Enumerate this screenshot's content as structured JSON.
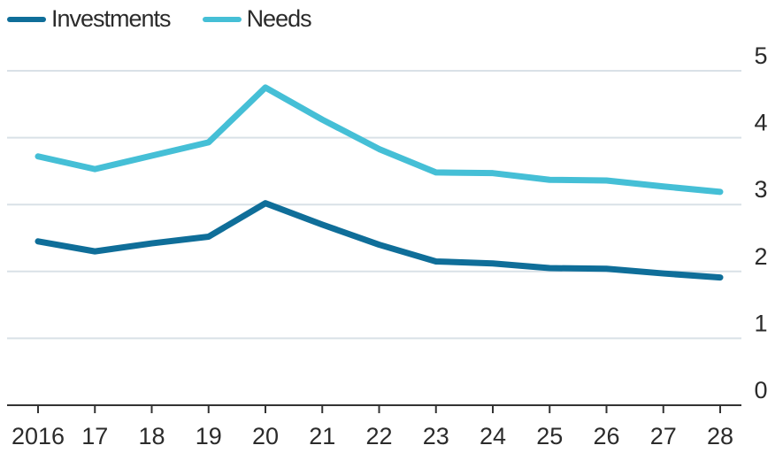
{
  "chart_data": {
    "type": "line",
    "title": "",
    "xlabel": "",
    "ylabel": "",
    "categories": [
      "2016",
      "17",
      "18",
      "19",
      "20",
      "21",
      "22",
      "23",
      "24",
      "25",
      "26",
      "27",
      "28"
    ],
    "yticks": [
      "0",
      "1",
      "2",
      "3",
      "4",
      "5"
    ],
    "ylim": [
      0,
      5
    ],
    "grid": true,
    "y_axis_side": "right",
    "legend_position": "top-left",
    "series": [
      {
        "name": "Investments",
        "color": "#0f6e99",
        "values": [
          2.45,
          2.3,
          2.42,
          2.52,
          3.02,
          2.7,
          2.4,
          2.15,
          2.12,
          2.05,
          2.04,
          1.97,
          1.91
        ]
      },
      {
        "name": "Needs",
        "color": "#45bfd6",
        "values": [
          3.72,
          3.53,
          3.73,
          3.93,
          4.75,
          4.27,
          3.83,
          3.48,
          3.47,
          3.37,
          3.36,
          3.27,
          3.19
        ]
      }
    ]
  }
}
